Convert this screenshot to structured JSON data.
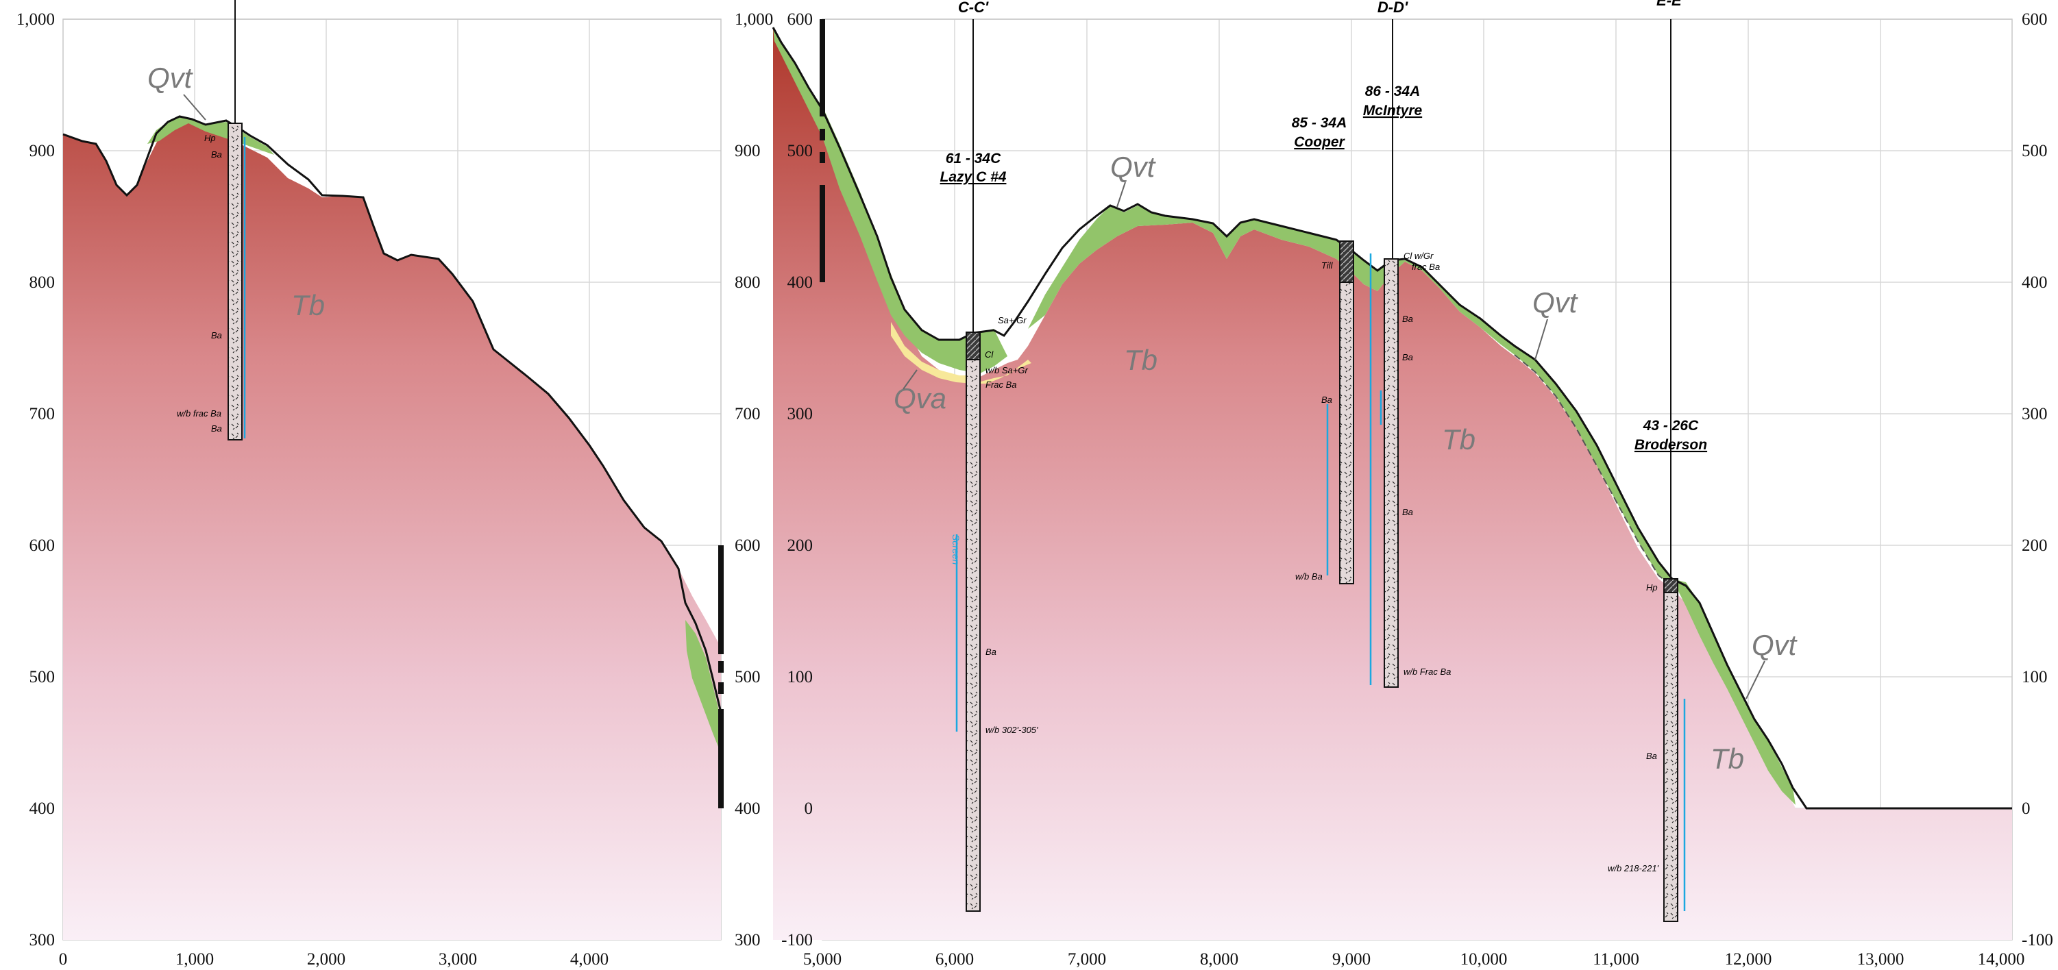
{
  "panel_left": {
    "y_ticks": [
      "1,000",
      "900",
      "800",
      "700",
      "600",
      "500",
      "400",
      "300"
    ],
    "x_ticks": [
      "0",
      "1,000",
      "2,000",
      "3,000",
      "4,000"
    ]
  },
  "panel_right": {
    "y_ticks_left": [
      "1,000",
      "900",
      "800",
      "700",
      "600",
      "500",
      "400",
      "300"
    ],
    "y_ticks_inner": [
      "600",
      "500",
      "400",
      "300",
      "200",
      "100",
      "0",
      "-100"
    ],
    "y_ticks_right": [
      "600",
      "500",
      "400",
      "300",
      "200",
      "100",
      "0",
      "-100"
    ],
    "x_ticks": [
      "5,000",
      "6,000",
      "7,000",
      "8,000",
      "9,000",
      "10,000",
      "11,000",
      "12,000",
      "13,000",
      "14,000"
    ]
  },
  "units": {
    "qvt": "Qvt",
    "qva": "Qva",
    "tb": "Tb"
  },
  "sections": {
    "cc": "C-C'",
    "dd": "D-D'",
    "ee": "E-E'"
  },
  "wells": {
    "lazy_c": {
      "id": "61 - 34C",
      "name": "Lazy C #4"
    },
    "cooper": {
      "id": "85 - 34A",
      "name": "Cooper"
    },
    "mcintyre": {
      "id": "86 - 34A",
      "name": "McIntyre"
    },
    "broderson": {
      "id": "43 - 26C",
      "name": "Broderson"
    }
  },
  "lith_labels": {
    "hp": "Hp",
    "ba": "Ba",
    "wb_frac_ba": "w/b frac Ba",
    "sa_gr": "Sa+ Gr",
    "cl": "Cl",
    "wb_sa_gr": "w/b Sa+Gr",
    "frac_ba": "Frac Ba",
    "wb_302": "w/b 302'-305'",
    "till": "Till",
    "cl_gr": "Cl w/Gr",
    "frac_ba_lower": "frac Ba",
    "wb_ba": "w/b Ba",
    "wb_frac_ba_cap": "w/b Frac Ba",
    "wb_218": "w/b 218-221'"
  },
  "colors": {
    "bedrock_top": "#b03a2e",
    "bedrock_bottom": "#f9eef6",
    "qvt_fill": "#92c46a",
    "qva_fill": "#f7e89a",
    "screen": "#1ba8e0"
  }
}
